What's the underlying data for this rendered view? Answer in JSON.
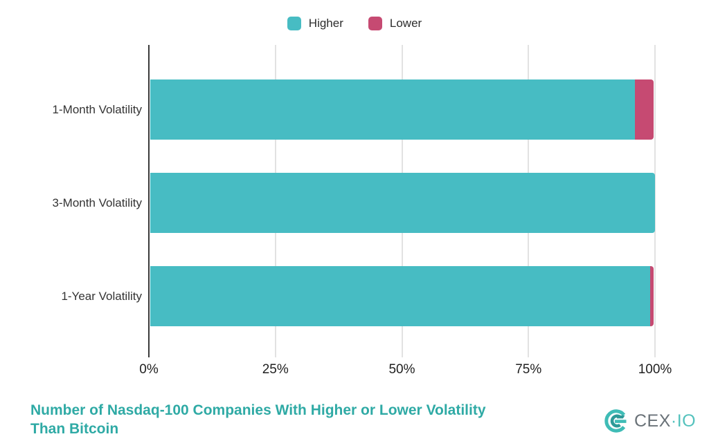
{
  "colors": {
    "higher": "#47bcc3",
    "lower": "#c64a72",
    "title": "#2faaa5",
    "grid": "#e2e2e2",
    "axis": "#3a3a3a",
    "legend_text": "#2d2d2d",
    "category_text": "#333333",
    "tick_text": "#1f1f1f",
    "logo_gray": "#6a7278",
    "logo_teal": "#3fbcb6"
  },
  "legend": {
    "items": [
      {
        "label": "Higher",
        "color": "#47bcc3"
      },
      {
        "label": "Lower",
        "color": "#c64a72"
      }
    ]
  },
  "chart_data": {
    "type": "bar",
    "orientation": "horizontal",
    "stacked": true,
    "title": "Number of Nasdaq-100 Companies With Higher or Lower Volatility Than Bitcoin",
    "categories": [
      "1-Month Volatility",
      "3-Month Volatility",
      "1-Year Volatility"
    ],
    "series": [
      {
        "name": "Higher",
        "color": "#47bcc3",
        "values": [
          96,
          100,
          99
        ]
      },
      {
        "name": "Lower",
        "color": "#c64a72",
        "values": [
          4,
          0,
          1
        ]
      }
    ],
    "x_ticks": [
      "0%",
      "25%",
      "50%",
      "75%",
      "100%"
    ],
    "x_tick_values": [
      0,
      25,
      50,
      75,
      100
    ],
    "xlim": [
      0,
      100
    ],
    "grid": true,
    "legend_position": "top-center"
  },
  "title_lines": [
    "Number of Nasdaq-100 Companies With Higher or Lower Volatility",
    "Than Bitcoin"
  ],
  "brand": {
    "primary": "CEX",
    "separator": "·",
    "secondary": "IO"
  }
}
